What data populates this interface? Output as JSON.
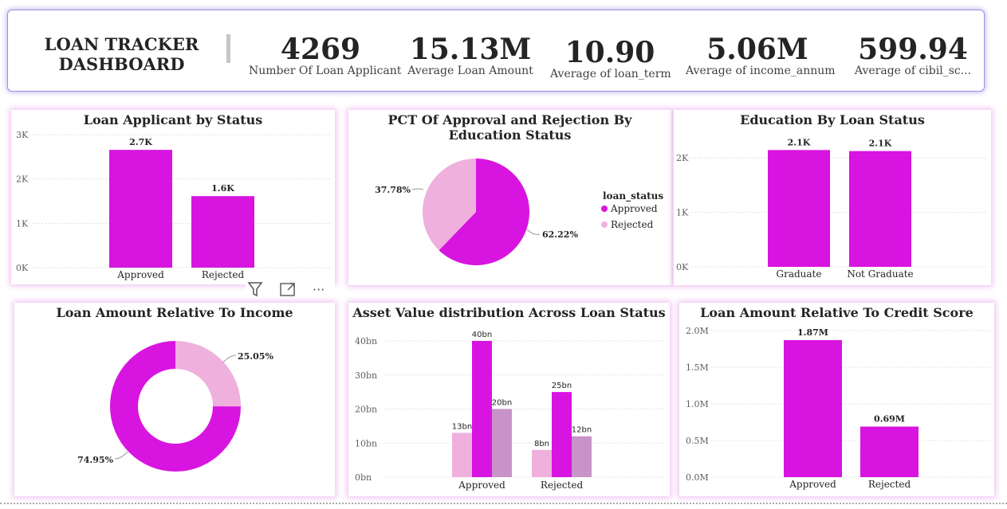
{
  "header": {
    "title": "LOAN TRACKER DASHBOARD",
    "kpis": [
      {
        "value": "4269",
        "label": "Number Of Loan Applicant"
      },
      {
        "value": "15.13M",
        "label": "Average Loan Amount"
      },
      {
        "value": "10.90",
        "label": "Average of  loan_term"
      },
      {
        "value": "5.06M",
        "label": "Average of  income_annum"
      },
      {
        "value": "599.94",
        "label": "Average of  cibil_sc..."
      }
    ]
  },
  "colors": {
    "primary": "#d814e0",
    "light": "#efb0dd",
    "mauve": "#c894c8",
    "header_border": "#9a8fe6"
  },
  "visual_header_icons": [
    "filter-icon",
    "focus-mode-icon",
    "more-options-icon"
  ],
  "chart_data": [
    {
      "id": "c1",
      "type": "bar",
      "title": "Loan Applicant by Status",
      "categories": [
        "Approved",
        "Rejected"
      ],
      "values": [
        2656,
        1613
      ],
      "data_labels": [
        "2.7K",
        "1.6K"
      ],
      "yticks": [
        0,
        1000,
        2000,
        3000
      ],
      "ytick_labels": [
        "0K",
        "1K",
        "2K",
        "3K"
      ],
      "ylim": [
        0,
        3000
      ],
      "grid": true
    },
    {
      "id": "c2",
      "type": "pie",
      "title": "PCT Of Approval and Rejection By Education Status",
      "legend_title": "loan_status",
      "legend_position": "right",
      "slices": [
        {
          "name": "Approved",
          "value": 62.22,
          "label": "62.22%"
        },
        {
          "name": "Rejected",
          "value": 37.78,
          "label": "37.78%"
        }
      ]
    },
    {
      "id": "c3",
      "type": "bar",
      "title": "Education By Loan Status",
      "categories": [
        "Graduate",
        "Not Graduate"
      ],
      "values": [
        2144,
        2125
      ],
      "data_labels": [
        "2.1K",
        "2.1K"
      ],
      "yticks": [
        0,
        1000,
        2000
      ],
      "ytick_labels": [
        "0K",
        "1K",
        "2K"
      ],
      "ylim": [
        0,
        2500
      ],
      "grid": true
    },
    {
      "id": "c4",
      "type": "pie",
      "donut": true,
      "title": "Loan Amount Relative To Income",
      "slices": [
        {
          "value": 74.95,
          "label": "74.95%"
        },
        {
          "value": 25.05,
          "label": "25.05%"
        }
      ]
    },
    {
      "id": "c5",
      "type": "bar",
      "title": "Asset Value distribution Across Loan Status",
      "categories": [
        "Approved",
        "Rejected"
      ],
      "series": [
        {
          "values": [
            13,
            8
          ],
          "labels": [
            "13bn",
            "8bn"
          ]
        },
        {
          "values": [
            40,
            25
          ],
          "labels": [
            "40bn",
            "25bn"
          ]
        },
        {
          "values": [
            20,
            12
          ],
          "labels": [
            "20bn",
            "12bn"
          ]
        }
      ],
      "yticks": [
        0,
        10,
        20,
        30,
        40
      ],
      "ytick_labels": [
        "0bn",
        "10bn",
        "20bn",
        "30bn",
        "40bn"
      ],
      "ylim": [
        0,
        40
      ],
      "grid": true
    },
    {
      "id": "c6",
      "type": "bar",
      "title": "Loan Amount Relative To Credit Score",
      "categories": [
        "Approved",
        "Rejected"
      ],
      "values": [
        1.87,
        0.69
      ],
      "data_labels": [
        "1.87M",
        "0.69M"
      ],
      "yticks": [
        0,
        0.5,
        1.0,
        1.5,
        2.0
      ],
      "ytick_labels": [
        "0.0M",
        "0.5M",
        "1.0M",
        "1.5M",
        "2.0M"
      ],
      "ylim": [
        0,
        2.0
      ],
      "grid": true
    }
  ]
}
